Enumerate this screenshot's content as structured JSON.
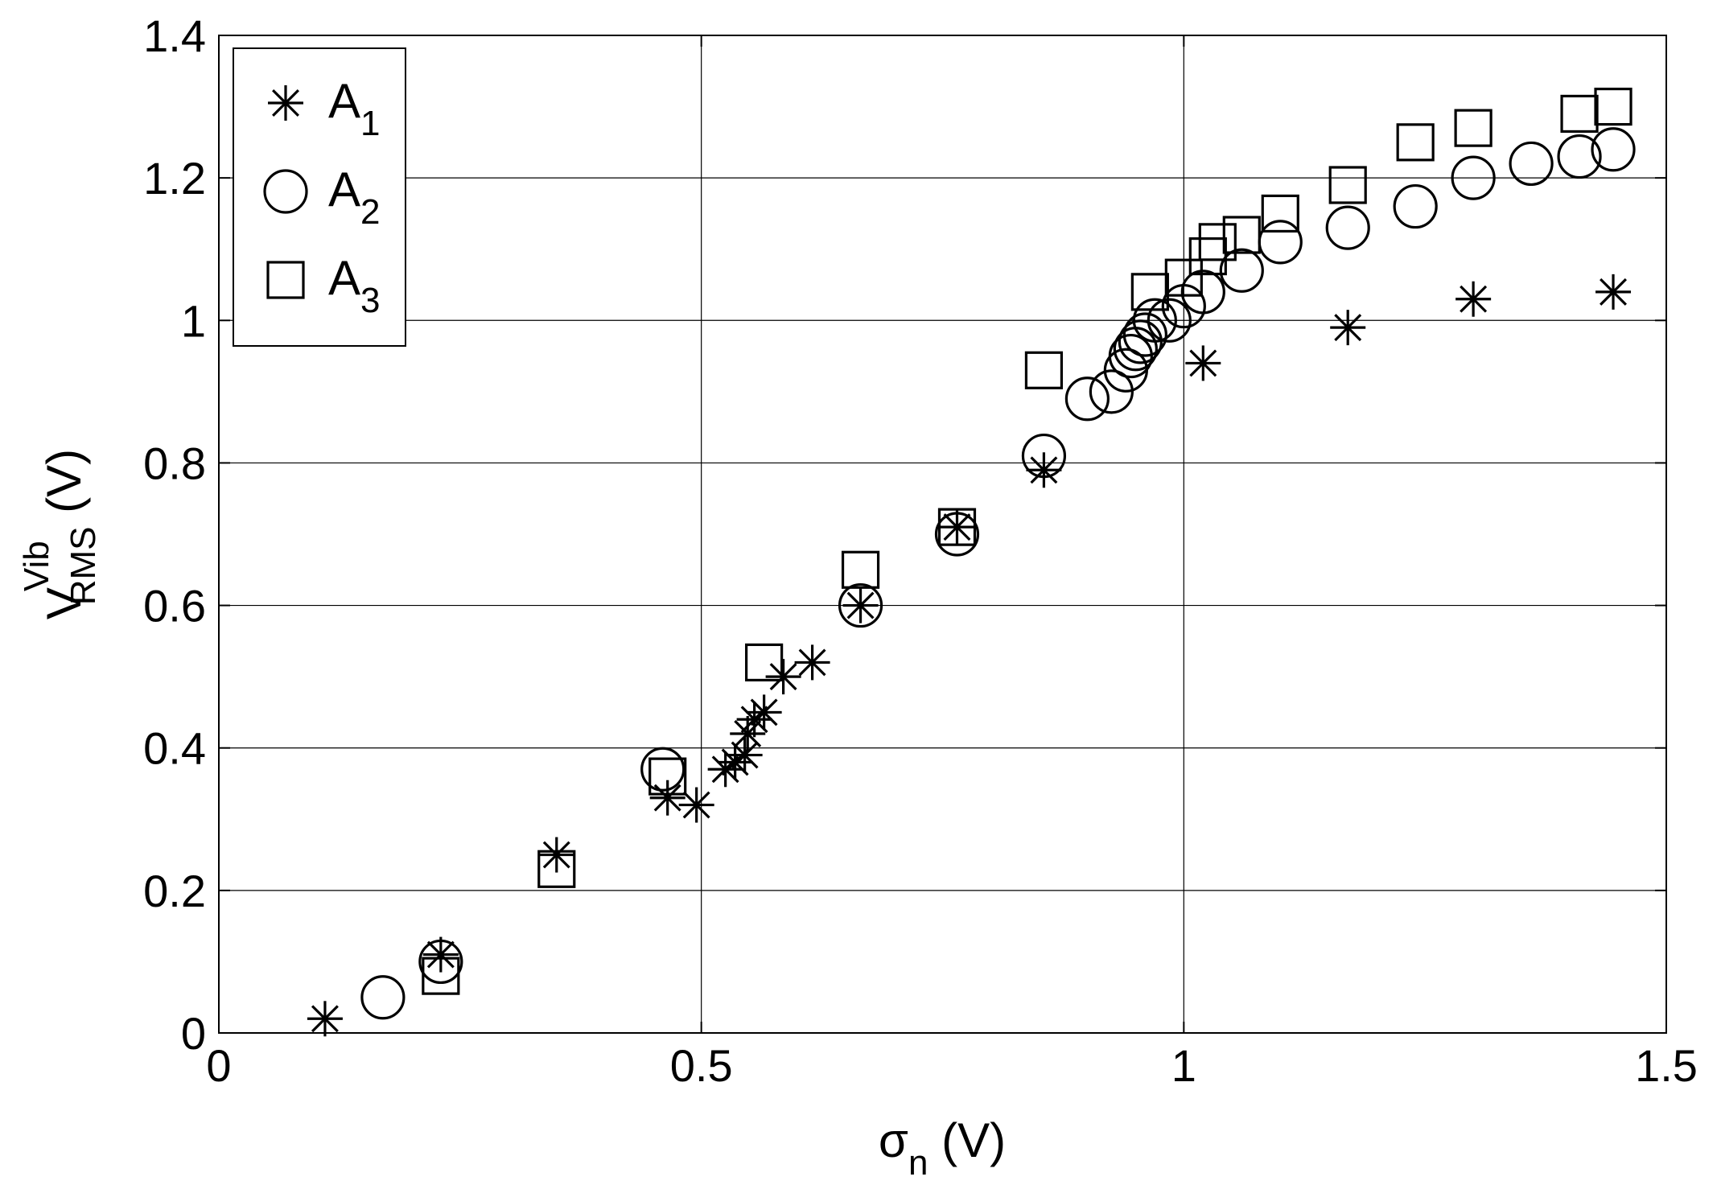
{
  "chart_data": {
    "type": "scatter",
    "title": "",
    "xlabel": {
      "base": "σ",
      "sub": "n",
      "suffix": " (V)"
    },
    "ylabel": {
      "base": "V",
      "sup": "Vib",
      "sub": "RMS",
      "suffix": " (V)"
    },
    "xlim": [
      0,
      1.5
    ],
    "ylim": [
      0,
      1.4
    ],
    "xticks": [
      "0",
      "0.5",
      "1",
      "1.5"
    ],
    "yticks": [
      "0",
      "0.2",
      "0.4",
      "0.6",
      "0.8",
      "1",
      "1.2",
      "1.4"
    ],
    "grid": true,
    "legend": "top-left",
    "series": [
      {
        "name": {
          "base": "A",
          "sub": "1"
        },
        "marker": "asterisk",
        "points": [
          [
            0.11,
            0.02
          ],
          [
            0.23,
            0.11
          ],
          [
            0.35,
            0.25
          ],
          [
            0.465,
            0.33
          ],
          [
            0.495,
            0.32
          ],
          [
            0.525,
            0.37
          ],
          [
            0.535,
            0.38
          ],
          [
            0.545,
            0.39
          ],
          [
            0.548,
            0.42
          ],
          [
            0.555,
            0.44
          ],
          [
            0.565,
            0.45
          ],
          [
            0.585,
            0.5
          ],
          [
            0.615,
            0.52
          ],
          [
            0.665,
            0.6
          ],
          [
            0.765,
            0.71
          ],
          [
            0.855,
            0.79
          ],
          [
            1.02,
            0.94
          ],
          [
            1.17,
            0.99
          ],
          [
            1.3,
            1.03
          ],
          [
            1.445,
            1.04
          ]
        ]
      },
      {
        "name": {
          "base": "A",
          "sub": "2"
        },
        "marker": "circle",
        "points": [
          [
            0.17,
            0.05
          ],
          [
            0.23,
            0.1
          ],
          [
            0.46,
            0.37
          ],
          [
            0.665,
            0.6
          ],
          [
            0.765,
            0.7
          ],
          [
            0.855,
            0.81
          ],
          [
            0.9,
            0.89
          ],
          [
            0.925,
            0.9
          ],
          [
            0.94,
            0.93
          ],
          [
            0.945,
            0.95
          ],
          [
            0.95,
            0.96
          ],
          [
            0.955,
            0.97
          ],
          [
            0.96,
            0.98
          ],
          [
            0.97,
            1.0
          ],
          [
            0.985,
            1.0
          ],
          [
            1.0,
            1.02
          ],
          [
            1.02,
            1.04
          ],
          [
            1.06,
            1.07
          ],
          [
            1.1,
            1.11
          ],
          [
            1.17,
            1.13
          ],
          [
            1.24,
            1.16
          ],
          [
            1.3,
            1.2
          ],
          [
            1.36,
            1.22
          ],
          [
            1.41,
            1.23
          ],
          [
            1.445,
            1.24
          ]
        ]
      },
      {
        "name": {
          "base": "A",
          "sub": "3"
        },
        "marker": "square",
        "points": [
          [
            0.23,
            0.08
          ],
          [
            0.35,
            0.23
          ],
          [
            0.465,
            0.36
          ],
          [
            0.565,
            0.52
          ],
          [
            0.665,
            0.65
          ],
          [
            0.765,
            0.71
          ],
          [
            0.855,
            0.93
          ],
          [
            0.965,
            1.04
          ],
          [
            1.0,
            1.06
          ],
          [
            1.025,
            1.09
          ],
          [
            1.035,
            1.11
          ],
          [
            1.06,
            1.12
          ],
          [
            1.1,
            1.15
          ],
          [
            1.17,
            1.19
          ],
          [
            1.24,
            1.25
          ],
          [
            1.3,
            1.27
          ],
          [
            1.41,
            1.29
          ],
          [
            1.445,
            1.3
          ]
        ]
      }
    ]
  }
}
